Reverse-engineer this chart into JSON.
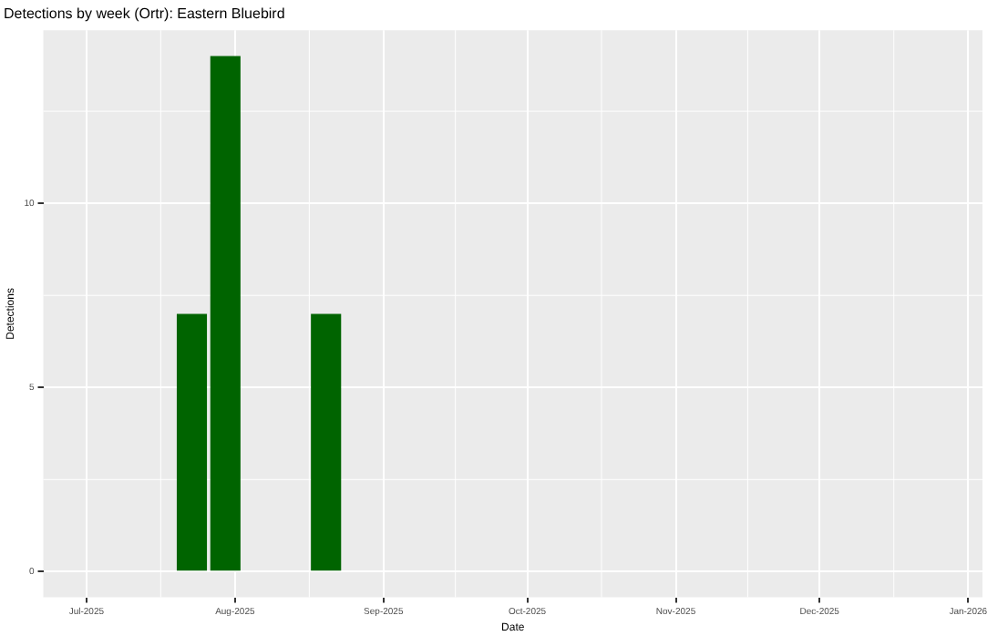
{
  "chart_data": {
    "type": "bar",
    "title": "Detections by week (Ortr): Eastern Bluebird",
    "xlabel": "Date",
    "ylabel": "Detections",
    "x": [
      "2025-07-23",
      "2025-07-30",
      "2025-08-20"
    ],
    "values": [
      7,
      14,
      7
    ],
    "color": "#006400",
    "xlim": [
      "2025-06-22",
      "2026-01-04"
    ],
    "xticks": [
      {
        "value": "2025-07-01",
        "label": "Jul-2025"
      },
      {
        "value": "2025-08-01",
        "label": "Aug-2025"
      },
      {
        "value": "2025-09-01",
        "label": "Sep-2025"
      },
      {
        "value": "2025-10-01",
        "label": "Oct-2025"
      },
      {
        "value": "2025-11-01",
        "label": "Nov-2025"
      },
      {
        "value": "2025-12-01",
        "label": "Dec-2025"
      },
      {
        "value": "2026-01-01",
        "label": "Jan-2026"
      }
    ],
    "ylim": [
      -0.7,
      14.7
    ],
    "yticks": [
      0,
      5,
      10
    ],
    "grid": true,
    "legend": false
  }
}
